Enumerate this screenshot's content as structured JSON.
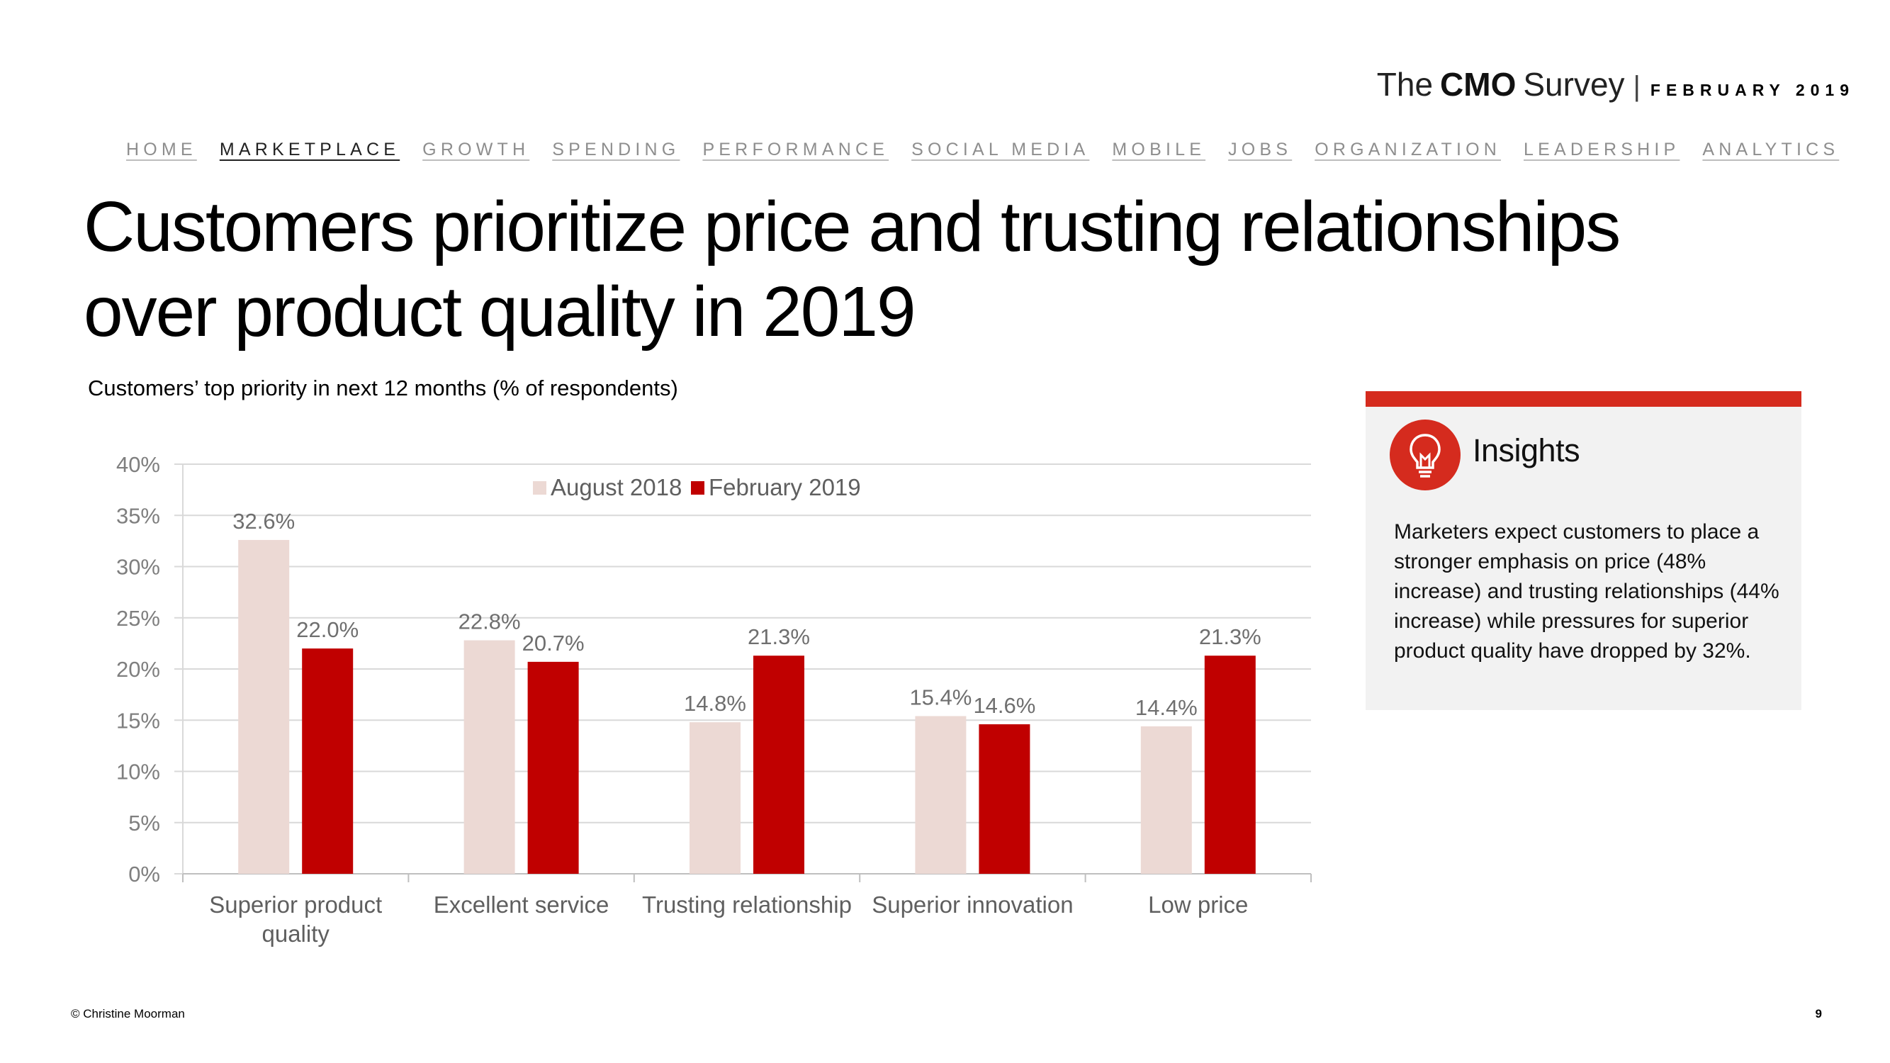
{
  "brand": {
    "the": "The",
    "cmo": "CMO",
    "survey": "Survey",
    "separator": "|",
    "date": "FEBRUARY 2019"
  },
  "nav": {
    "items": [
      "HOME",
      "MARKETPLACE",
      "GROWTH",
      "SPENDING",
      "PERFORMANCE",
      "SOCIAL MEDIA",
      "MOBILE",
      "JOBS",
      "ORGANIZATION",
      "LEADERSHIP",
      "ANALYTICS"
    ],
    "active": "MARKETPLACE"
  },
  "title": "Customers prioritize price and trusting relationships over product quality in 2019",
  "subtitle": "Customers’ top priority in next 12 months (% of respondents)",
  "chart_data": {
    "type": "bar",
    "categories": [
      "Superior product quality",
      "Excellent service",
      "Trusting relationship",
      "Superior innovation",
      "Low price"
    ],
    "category_lines": [
      [
        "Superior product",
        "quality"
      ],
      [
        "Excellent service"
      ],
      [
        "Trusting relationship"
      ],
      [
        "Superior innovation"
      ],
      [
        "Low price"
      ]
    ],
    "series": [
      {
        "name": "August 2018",
        "values": [
          32.6,
          22.8,
          14.8,
          15.4,
          14.4
        ],
        "labels": [
          "32.6%",
          "22.8%",
          "14.8%",
          "15.4%",
          "14.4%"
        ],
        "color": "#ecd9d4"
      },
      {
        "name": "February 2019",
        "values": [
          22.0,
          20.7,
          21.3,
          14.6,
          21.3
        ],
        "labels": [
          "22.0%",
          "20.7%",
          "21.3%",
          "14.6%",
          "21.3%"
        ],
        "color": "#c00000"
      }
    ],
    "yticks": [
      "0%",
      "5%",
      "10%",
      "15%",
      "20%",
      "25%",
      "30%",
      "35%",
      "40%"
    ],
    "ylim": [
      0,
      40
    ],
    "legend": "top-center",
    "grid": true
  },
  "insights": {
    "title": "Insights",
    "body": "Marketers expect customers to place a stronger emphasis on price (48% increase) and trusting relationships (44% increase) while pressures for superior product quality have dropped by 32%.",
    "accent": "#d52b1e",
    "icon": "lightbulb-icon"
  },
  "footer": {
    "copyright": "© Christine Moorman",
    "page": "9"
  }
}
